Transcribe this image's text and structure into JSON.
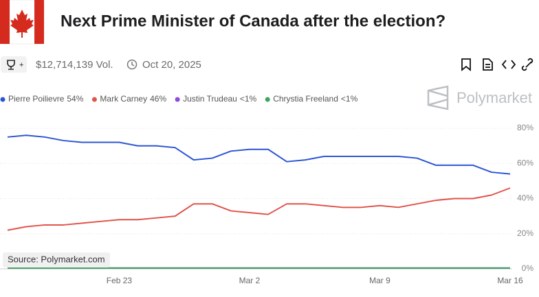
{
  "header": {
    "title": "Next Prime Minister of Canada after the election?",
    "volume": "$12,714,139 Vol.",
    "date": "Oct 20, 2025",
    "brand": "Polymarket"
  },
  "chart_data": {
    "type": "line",
    "x": [
      "Feb 17",
      "Feb 18",
      "Feb 19",
      "Feb 20",
      "Feb 21",
      "Feb 22",
      "Feb 23",
      "Feb 24",
      "Feb 25",
      "Feb 26",
      "Feb 27",
      "Feb 28",
      "Mar 1",
      "Mar 2",
      "Mar 3",
      "Mar 4",
      "Mar 5",
      "Mar 6",
      "Mar 7",
      "Mar 8",
      "Mar 9",
      "Mar 10",
      "Mar 11",
      "Mar 12",
      "Mar 13",
      "Mar 14",
      "Mar 15",
      "Mar 16"
    ],
    "xticks": [
      "Feb 23",
      "Mar 2",
      "Mar 9",
      "Mar 16"
    ],
    "series": [
      {
        "name": "Pierre Poilievre",
        "legend_value": "54%",
        "color": "#2c55d4",
        "values": [
          75,
          76,
          75,
          73,
          72,
          72,
          72,
          70,
          70,
          69,
          62,
          63,
          67,
          68,
          68,
          61,
          62,
          64,
          64,
          64,
          64,
          64,
          63,
          59,
          59,
          59,
          55,
          54
        ]
      },
      {
        "name": "Mark Carney",
        "legend_value": "46%",
        "color": "#e0534a",
        "values": [
          22,
          24,
          25,
          25,
          26,
          27,
          28,
          28,
          29,
          30,
          37,
          37,
          33,
          32,
          31,
          37,
          37,
          36,
          35,
          35,
          36,
          35,
          37,
          39,
          40,
          40,
          42,
          46
        ]
      },
      {
        "name": "Justin Trudeau",
        "legend_value": "<1%",
        "color": "#8e4ad8",
        "values": [
          0.5,
          0.5,
          0.5,
          0.5,
          0.5,
          0.5,
          0.5,
          0.5,
          0.5,
          0.5,
          0.5,
          0.5,
          0.5,
          0.5,
          0.5,
          0.5,
          0.5,
          0.5,
          0.5,
          0.5,
          0.5,
          0.5,
          0.5,
          0.5,
          0.5,
          0.5,
          0.5,
          0.5
        ]
      },
      {
        "name": "Chrystia Freeland",
        "legend_value": "<1%",
        "color": "#3ea35f",
        "values": [
          0.5,
          0.5,
          0.5,
          0.5,
          0.5,
          0.5,
          0.5,
          0.5,
          0.5,
          0.5,
          0.5,
          0.5,
          0.5,
          0.5,
          0.5,
          0.5,
          0.5,
          0.5,
          0.5,
          0.5,
          0.5,
          0.5,
          0.5,
          0.5,
          0.5,
          0.5,
          0.5,
          0.5
        ]
      }
    ],
    "ylim": [
      0,
      80
    ],
    "yticks": [
      {
        "value": 0,
        "label": "0%"
      },
      {
        "value": 20,
        "label": "20%"
      },
      {
        "value": 40,
        "label": "40%"
      },
      {
        "value": 60,
        "label": "60%"
      },
      {
        "value": 80,
        "label": "80%"
      }
    ],
    "grid": true,
    "source": "Source: Polymarket.com"
  }
}
